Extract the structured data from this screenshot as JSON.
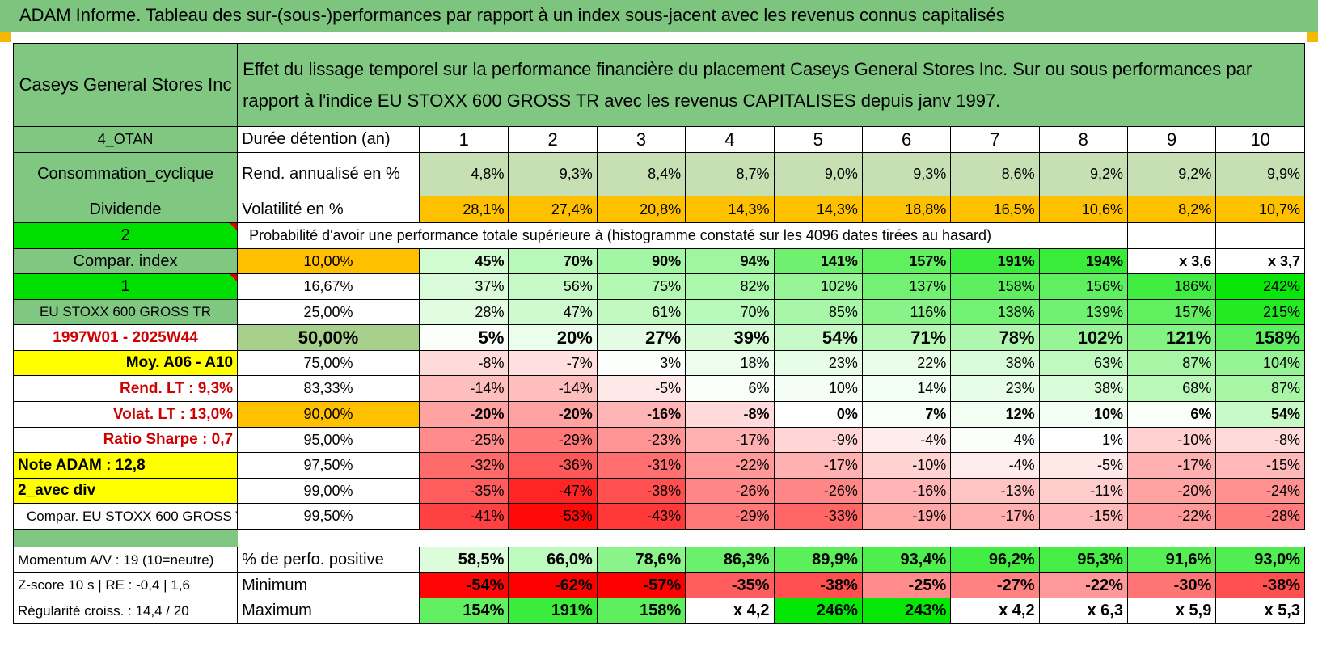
{
  "title": "ADAM Informe. Tableau des sur-(sous-)performances par rapport à un index sous-jacent avec les revenus connus capitalisés",
  "company": "Caseys General Stores Inc",
  "description": "Effet du lissage temporel sur la performance financière du placement Caseys General Stores Inc. Sur ou sous performances par rapport à l'indice EU STOXX 600 GROSS TR avec les revenus CAPITALISES depuis janv 1997.",
  "side": {
    "otan": "4_OTAN",
    "sector": "Consommation_cyclique",
    "dividende": "Dividende",
    "two": "2",
    "compar_index": "Compar. index",
    "one": "1",
    "index_name": "EU STOXX 600 GROSS TR",
    "period": "1997W01 - 2025W44",
    "moy": "Moy. A06 - A10",
    "rend_lt": "Rend. LT :   9,3%",
    "volat_lt": "Volat. LT :   13,0%",
    "sharpe": "Ratio Sharpe :    0,7",
    "note": "Note ADAM : 12,8",
    "avec_div": "2_avec div",
    "compar_full": "Compar. EU STOXX 600 GROSS TR",
    "momentum": "Momentum A/V : 19 (10=neutre)",
    "zscore": "Z-score 10 s | RE : -0,4 | 1,6",
    "regul": "Régularité croiss. : 14,4 / 20"
  },
  "labels": {
    "duree": "Durée détention (an)",
    "rend": "Rend. annualisé en %",
    "vol": "Volatilité en %",
    "proba": "Probabilité d'avoir une performance totale supérieure à (histogramme constaté sur les 4096 dates tirées au hasard)",
    "pos": "% de perfo. positive",
    "min": "Minimum",
    "max": "Maximum"
  },
  "years": [
    "1",
    "2",
    "3",
    "4",
    "5",
    "6",
    "7",
    "8",
    "9",
    "10"
  ],
  "rend": [
    "4,8%",
    "9,3%",
    "8,4%",
    "8,7%",
    "9,0%",
    "9,3%",
    "8,6%",
    "9,2%",
    "9,2%",
    "9,9%"
  ],
  "vol": [
    "28,1%",
    "27,4%",
    "20,8%",
    "14,3%",
    "14,3%",
    "18,8%",
    "16,5%",
    "10,6%",
    "8,2%",
    "10,7%"
  ],
  "quantiles": [
    {
      "p": "10,00%",
      "v": [
        "45%",
        "70%",
        "90%",
        "94%",
        "141%",
        "157%",
        "191%",
        "194%",
        "x 3,6",
        "x 3,7"
      ]
    },
    {
      "p": "16,67%",
      "v": [
        "37%",
        "56%",
        "75%",
        "82%",
        "102%",
        "137%",
        "158%",
        "156%",
        "186%",
        "242%"
      ]
    },
    {
      "p": "25,00%",
      "v": [
        "28%",
        "47%",
        "61%",
        "70%",
        "85%",
        "116%",
        "138%",
        "139%",
        "157%",
        "215%"
      ]
    },
    {
      "p": "50,00%",
      "v": [
        "5%",
        "20%",
        "27%",
        "39%",
        "54%",
        "71%",
        "78%",
        "102%",
        "121%",
        "158%"
      ]
    },
    {
      "p": "75,00%",
      "v": [
        "-8%",
        "-7%",
        "3%",
        "18%",
        "23%",
        "22%",
        "38%",
        "63%",
        "87%",
        "104%"
      ]
    },
    {
      "p": "83,33%",
      "v": [
        "-14%",
        "-14%",
        "-5%",
        "6%",
        "10%",
        "14%",
        "23%",
        "38%",
        "68%",
        "87%"
      ]
    },
    {
      "p": "90,00%",
      "v": [
        "-20%",
        "-20%",
        "-16%",
        "-8%",
        "0%",
        "7%",
        "12%",
        "10%",
        "6%",
        "54%"
      ]
    },
    {
      "p": "95,00%",
      "v": [
        "-25%",
        "-29%",
        "-23%",
        "-17%",
        "-9%",
        "-4%",
        "4%",
        "1%",
        "-10%",
        "-8%"
      ]
    },
    {
      "p": "97,50%",
      "v": [
        "-32%",
        "-36%",
        "-31%",
        "-22%",
        "-17%",
        "-10%",
        "-4%",
        "-5%",
        "-17%",
        "-15%"
      ]
    },
    {
      "p": "99,00%",
      "v": [
        "-35%",
        "-47%",
        "-38%",
        "-26%",
        "-26%",
        "-16%",
        "-13%",
        "-11%",
        "-20%",
        "-24%"
      ]
    },
    {
      "p": "99,50%",
      "v": [
        "-41%",
        "-53%",
        "-43%",
        "-29%",
        "-33%",
        "-19%",
        "-17%",
        "-15%",
        "-22%",
        "-28%"
      ]
    }
  ],
  "pos": [
    "58,5%",
    "66,0%",
    "78,6%",
    "86,3%",
    "89,9%",
    "93,4%",
    "96,2%",
    "95,3%",
    "91,6%",
    "93,0%"
  ],
  "min": [
    "-54%",
    "-62%",
    "-57%",
    "-35%",
    "-38%",
    "-25%",
    "-27%",
    "-22%",
    "-30%",
    "-38%"
  ],
  "max": [
    "154%",
    "191%",
    "158%",
    "x 4,2",
    "246%",
    "243%",
    "x 4,2",
    "x 6,3",
    "x 5,9",
    "x 5,3"
  ],
  "colors": {
    "green": "#80c882",
    "bright": "#00e000",
    "orange": "#ffc000",
    "yellow": "#ffff00",
    "red_text": "#d00000"
  }
}
